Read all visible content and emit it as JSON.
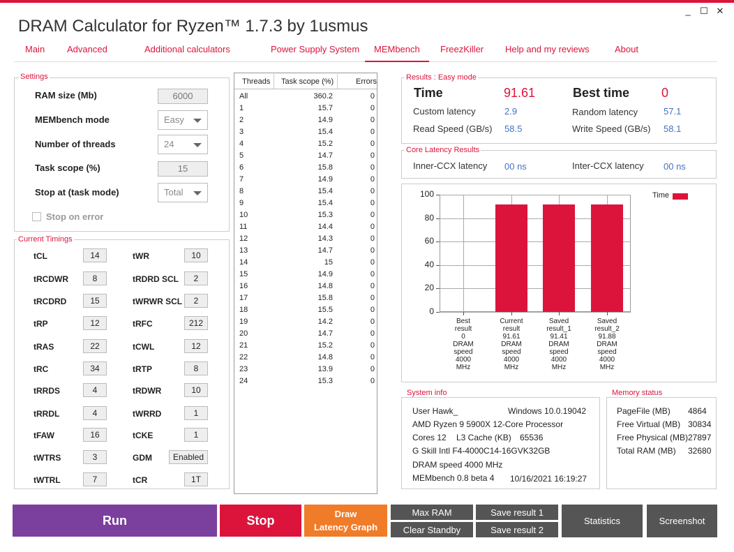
{
  "app": {
    "title": "DRAM Calculator for Ryzen™ 1.7.3 by 1usmus",
    "minimize": "_",
    "maximize": "☐",
    "close": "✕"
  },
  "menu": [
    "Main",
    "Advanced",
    "Additional calculators",
    "Power Supply System",
    "MEMbench",
    "FreezKiller",
    "Help and my reviews",
    "About"
  ],
  "settings": {
    "title": "Settings",
    "ram_size_label": "RAM size (Mb)",
    "ram_size": "6000",
    "mode_label": "MEMbench mode",
    "mode": "Easy",
    "threads_label": "Number of threads",
    "threads": "24",
    "scope_label": "Task scope (%)",
    "scope": "15",
    "stop_label": "Stop at (task mode)",
    "stop": "Total",
    "stop_on_error": "Stop on error"
  },
  "timings": {
    "title": "Current Timings",
    "left": [
      [
        "tCL",
        "14"
      ],
      [
        "tRCDWR",
        "8"
      ],
      [
        "tRCDRD",
        "15"
      ],
      [
        "tRP",
        "12"
      ],
      [
        "tRAS",
        "22"
      ],
      [
        "tRC",
        "34"
      ],
      [
        "tRRDS",
        "4"
      ],
      [
        "tRRDL",
        "4"
      ],
      [
        "tFAW",
        "16"
      ],
      [
        "tWTRS",
        "3"
      ],
      [
        "tWTRL",
        "7"
      ]
    ],
    "right": [
      [
        "tWR",
        "10"
      ],
      [
        "tRDRD SCL",
        "2"
      ],
      [
        "tWRWR SCL",
        "2"
      ],
      [
        "tRFC",
        "212"
      ],
      [
        "tCWL",
        "12"
      ],
      [
        "tRTP",
        "8"
      ],
      [
        "tRDWR",
        "10"
      ],
      [
        "tWRRD",
        "1"
      ],
      [
        "tCKE",
        "1"
      ],
      [
        "GDM",
        "Enabled"
      ],
      [
        "tCR",
        "1T"
      ]
    ]
  },
  "threads_table": {
    "headers": [
      "Threads",
      "Task scope (%)",
      "Errors"
    ],
    "rows": [
      [
        "All",
        "360.2",
        "0"
      ],
      [
        "1",
        "15.7",
        "0"
      ],
      [
        "2",
        "14.9",
        "0"
      ],
      [
        "3",
        "15.4",
        "0"
      ],
      [
        "4",
        "15.2",
        "0"
      ],
      [
        "5",
        "14.7",
        "0"
      ],
      [
        "6",
        "15.8",
        "0"
      ],
      [
        "7",
        "14.9",
        "0"
      ],
      [
        "8",
        "15.4",
        "0"
      ],
      [
        "9",
        "15.4",
        "0"
      ],
      [
        "10",
        "15.3",
        "0"
      ],
      [
        "11",
        "14.4",
        "0"
      ],
      [
        "12",
        "14.3",
        "0"
      ],
      [
        "13",
        "14.7",
        "0"
      ],
      [
        "14",
        "15",
        "0"
      ],
      [
        "15",
        "14.9",
        "0"
      ],
      [
        "16",
        "14.8",
        "0"
      ],
      [
        "17",
        "15.8",
        "0"
      ],
      [
        "18",
        "15.5",
        "0"
      ],
      [
        "19",
        "14.2",
        "0"
      ],
      [
        "20",
        "14.7",
        "0"
      ],
      [
        "21",
        "15.2",
        "0"
      ],
      [
        "22",
        "14.8",
        "0"
      ],
      [
        "23",
        "13.9",
        "0"
      ],
      [
        "24",
        "15.3",
        "0"
      ]
    ]
  },
  "results": {
    "title": "Results : Easy mode",
    "time_label": "Time",
    "time": "91.61",
    "best_label": "Best time",
    "best": "0",
    "custom_label": "Custom latency",
    "custom": "2.9",
    "random_label": "Random latency",
    "random": "57.1",
    "read_label": "Read Speed (GB/s)",
    "read": "58.5",
    "write_label": "Write Speed (GB/s)",
    "write": "58.1"
  },
  "core": {
    "title": "Core Latency Results",
    "inner_label": "Inner-CCX latency",
    "inner": "00 ns",
    "inter_label": "Inter-CCX latency",
    "inter": "00 ns"
  },
  "chart_data": {
    "type": "bar",
    "categories": [
      "Best result 0 DRAM speed 4000 MHz",
      "Current result 91.61 DRAM speed 4000 MHz",
      "Saved result_1 91.41 DRAM speed 4000 MHz",
      "Saved result_2 91.88 DRAM speed 4000 MHz"
    ],
    "category_lines": [
      [
        "Best",
        "result",
        "0",
        "DRAM",
        "speed",
        "4000",
        "MHz"
      ],
      [
        "Current",
        "result",
        "91.61",
        "DRAM",
        "speed",
        "4000",
        "MHz"
      ],
      [
        "Saved",
        "result_1",
        "91.41",
        "DRAM",
        "speed",
        "4000",
        "MHz"
      ],
      [
        "Saved",
        "result_2",
        "91.88",
        "DRAM",
        "speed",
        "4000",
        "MHz"
      ]
    ],
    "series": [
      {
        "name": "Time",
        "values": [
          0,
          91.61,
          91.41,
          91.88
        ],
        "color": "#dc143c"
      }
    ],
    "ylim": [
      0,
      100
    ],
    "yticks": [
      0,
      20,
      40,
      60,
      80,
      100
    ],
    "grid": true,
    "legend": "top-right"
  },
  "sysinfo": {
    "title": "System info",
    "user": "User Hawk_",
    "os": "Windows 10.0.19042",
    "cpu": "AMD Ryzen 9 5900X 12-Core Processor",
    "cores": "Cores 12",
    "l3_label": "L3 Cache (KB)",
    "l3": "65536",
    "mem": "G Skill Intl F4-4000C14-16GVK32GB",
    "dram": "DRAM speed 4000 MHz",
    "ver": "MEMbench 0.8 beta 4",
    "date": "10/16/2021 16:19:27"
  },
  "memstatus": {
    "title": "Memory status",
    "rows": [
      [
        "PageFile (MB)",
        "4864"
      ],
      [
        "Free Virtual (MB)",
        "30834"
      ],
      [
        "Free Physical (MB)",
        "27897"
      ],
      [
        "Total RAM (MB)",
        "32680"
      ]
    ]
  },
  "buttons": {
    "run": "Run",
    "stop": "Stop",
    "draw1": "Draw",
    "draw2": "Latency Graph",
    "maxram": "Max RAM",
    "clear": "Clear Standby",
    "save1": "Save result 1",
    "save2": "Save result 2",
    "stats": "Statistics",
    "shot": "Screenshot"
  },
  "colors": {
    "accent": "#dc143c",
    "run": "#7b3f9e",
    "draw": "#f07c2a",
    "gray": "#555555",
    "value": "#4472c4"
  }
}
